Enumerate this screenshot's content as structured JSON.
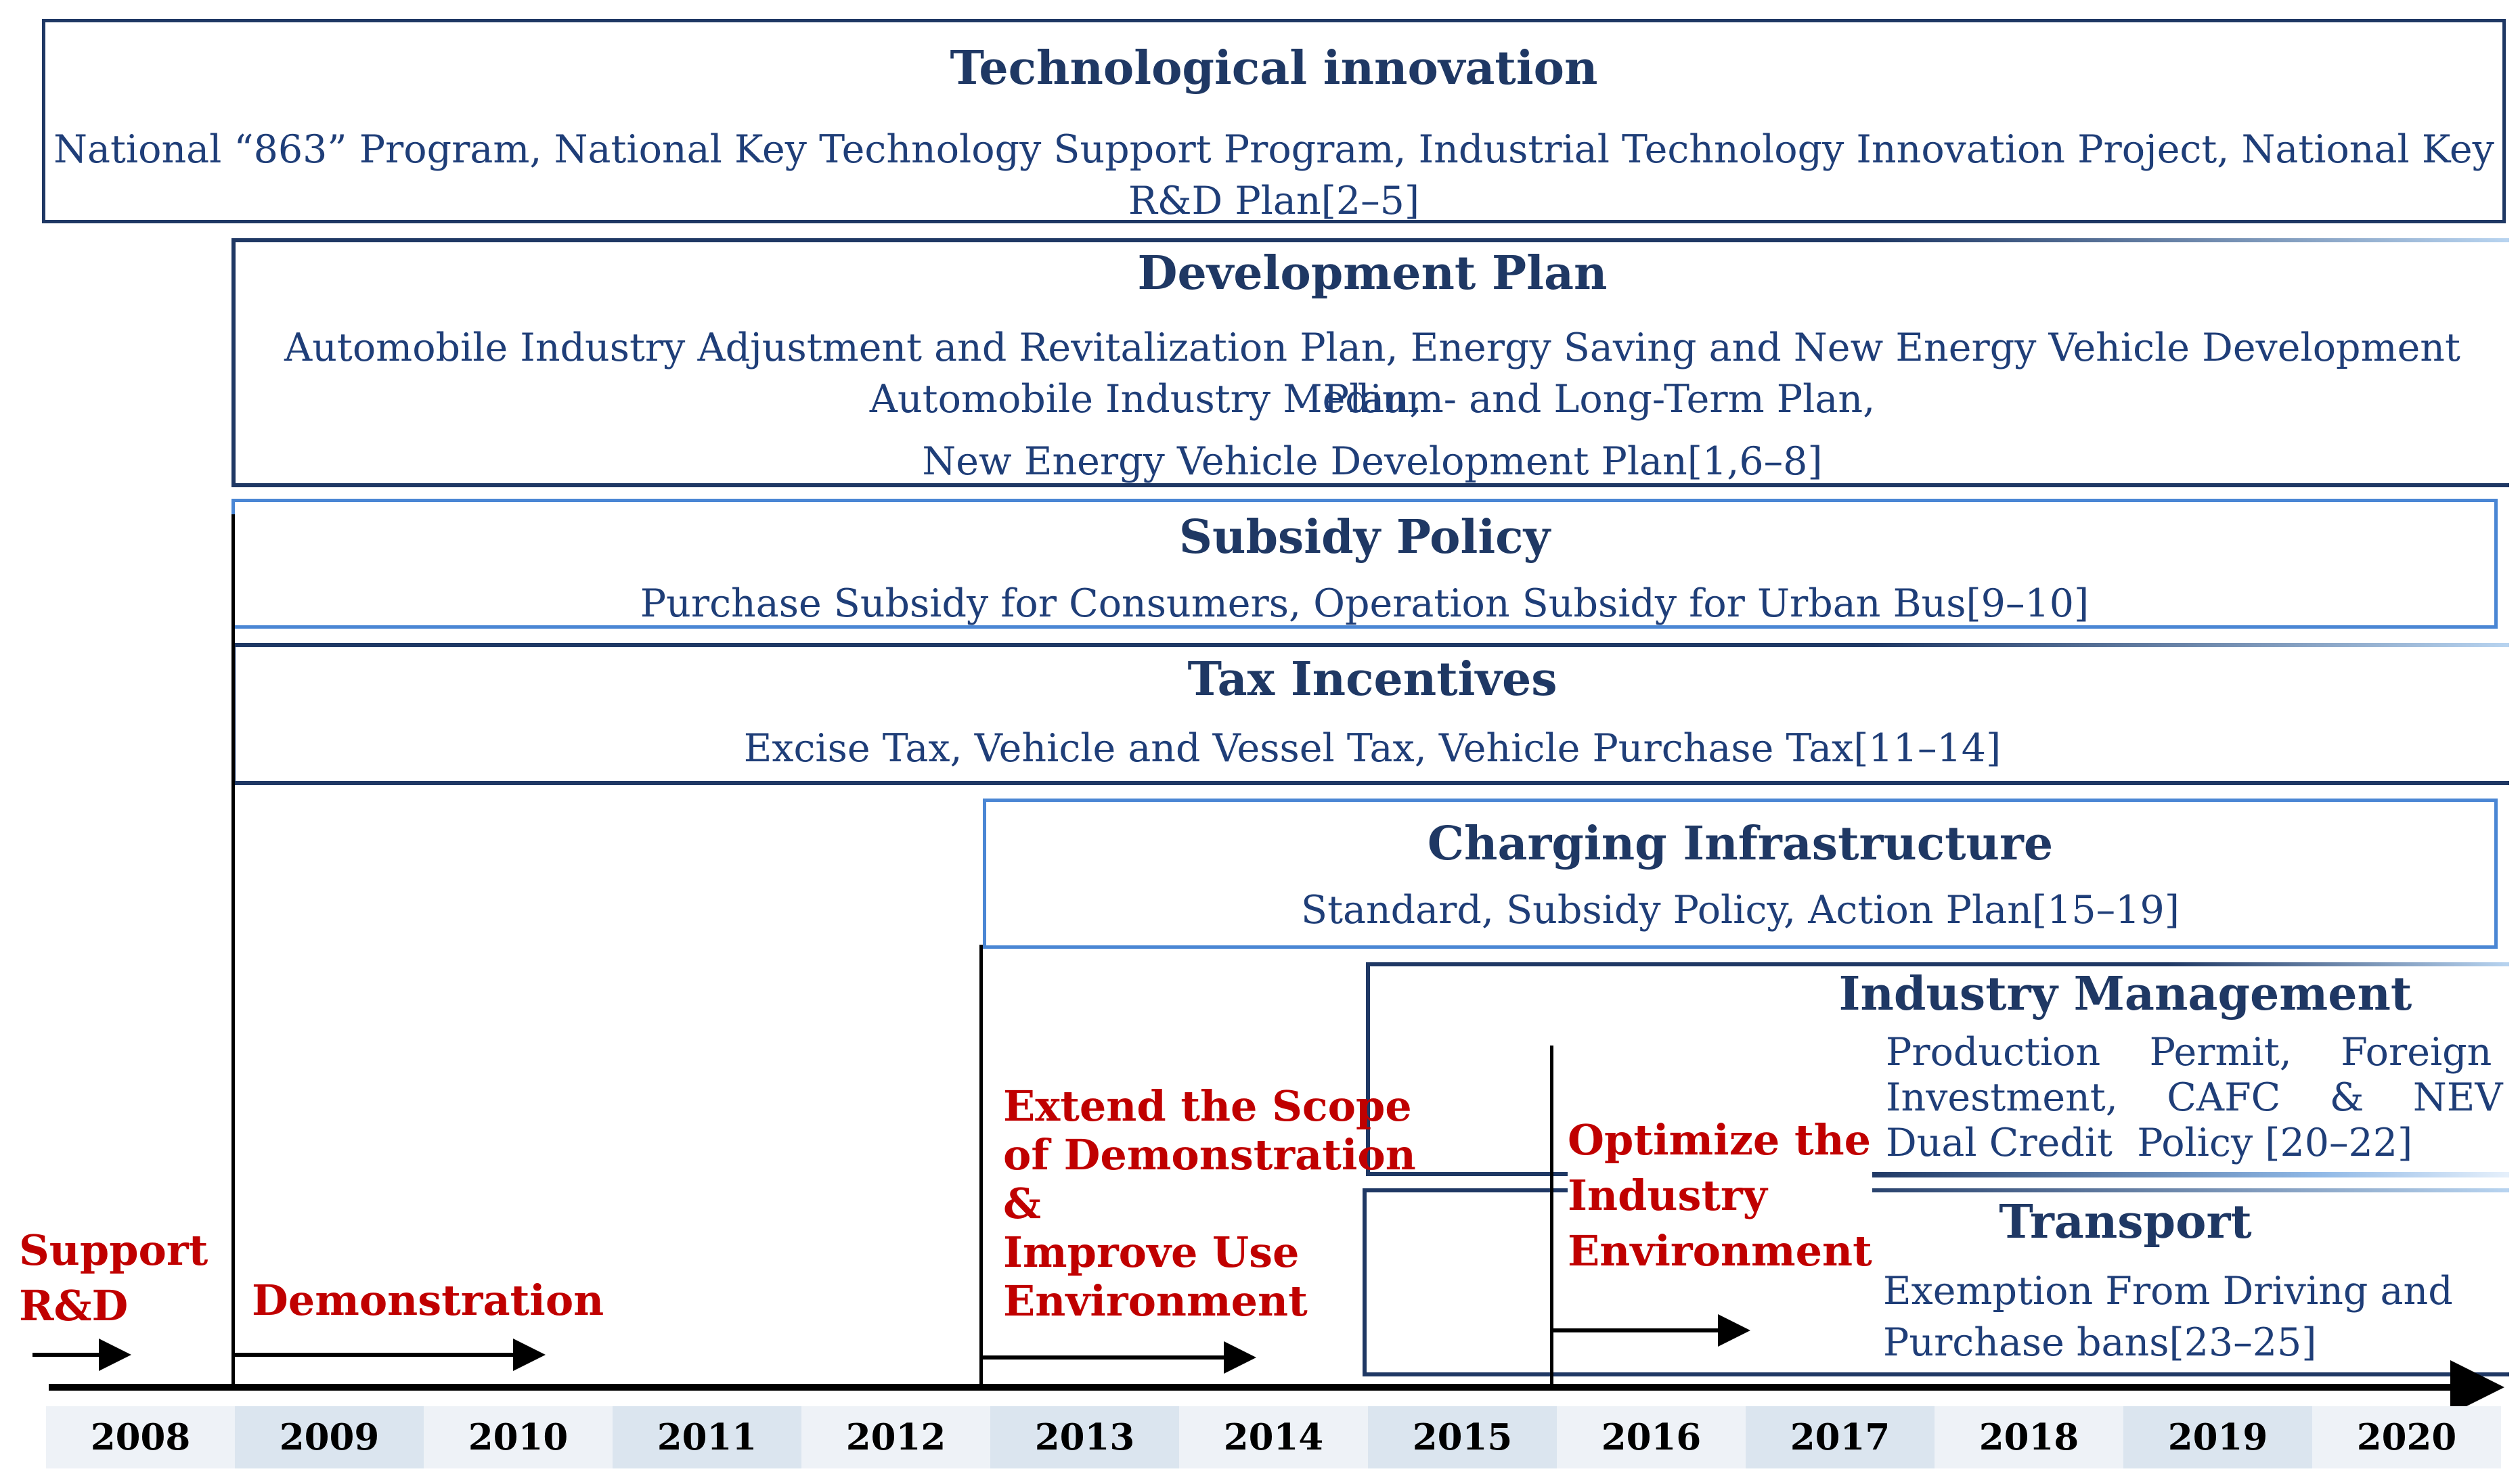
{
  "diagram": {
    "boxes": [
      {
        "key": "tech",
        "title": "Technological innovation",
        "lines": [
          "National “863” Program, National Key Technology Support Program, Industrial Technology Innovation Project, National Key",
          "R&D Plan[2–5]"
        ]
      },
      {
        "key": "devplan",
        "title": "Development Plan",
        "lines": [
          "Automobile Industry Adjustment and Revitalization Plan, Energy Saving and New Energy Vehicle Development Plan,",
          "Automobile Industry Medium- and Long-Term Plan,",
          "New Energy Vehicle Development Plan[1,6–8]"
        ]
      },
      {
        "key": "subsidy",
        "title": "Subsidy Policy",
        "lines": [
          "Purchase Subsidy for Consumers, Operation Subsidy for Urban Bus[9–10]"
        ]
      },
      {
        "key": "tax",
        "title": "Tax Incentives",
        "lines": [
          "Excise Tax, Vehicle  and Vessel Tax, Vehicle Purchase Tax[11–14]"
        ]
      },
      {
        "key": "charging",
        "title": "Charging Infrastructure",
        "lines": [
          "Standard, Subsidy Policy, Action Plan[15–19]"
        ]
      },
      {
        "key": "industry",
        "title": "Industry Management",
        "lines": [
          "Production    Permit,    Foreign",
          "Investment,    CAFC    &    NEV",
          "Dual Credit  Policy [20–22]"
        ]
      },
      {
        "key": "transport",
        "title": "Transport",
        "lines": [
          "Exemption From Driving and",
          "Purchase bans[23–25]"
        ]
      }
    ],
    "phases": [
      {
        "key": "support",
        "lines": [
          "Support",
          "R&D"
        ]
      },
      {
        "key": "demo",
        "lines": [
          "Demonstration"
        ]
      },
      {
        "key": "extend",
        "lines": [
          "Extend the Scope",
          "of Demonstration",
          "&",
          "Improve Use",
          "Environment"
        ]
      },
      {
        "key": "optimize",
        "lines": [
          "Optimize the",
          "Industry",
          "Environment"
        ]
      }
    ],
    "years": [
      "2008",
      "2009",
      "2010",
      "2011",
      "2012",
      "2013",
      "2014",
      "2015",
      "2016",
      "2017",
      "2018",
      "2019",
      "2020"
    ]
  },
  "colors": {
    "dark_blue": "#1f3864",
    "mid_blue": "#4a86d4",
    "text_blue": "#1f3e78",
    "phase_red": "#c00000",
    "year_shade": "#dbe5ef",
    "year_plain": "#eef2f7"
  }
}
